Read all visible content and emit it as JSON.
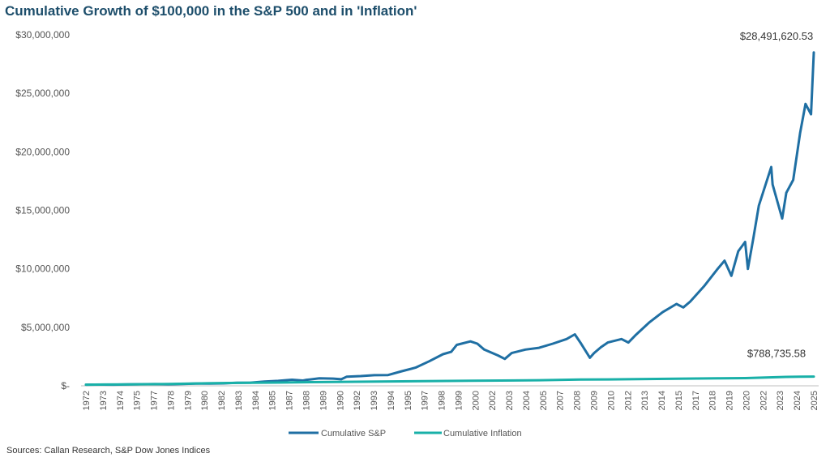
{
  "title": "Cumulative Growth of $100,000 in the S&P 500 and in 'Inflation'",
  "source": "Sources: Callan Research, S&P Dow Jones Indices",
  "colors": {
    "sp": "#1f6fa3",
    "inflation": "#19b0a8",
    "axis": "#bfbfbf",
    "title": "#1d4e6b"
  },
  "chart_data": {
    "type": "line",
    "title": "Cumulative Growth of $100,000 in the S&P 500 and in 'Inflation'",
    "xlabel": "",
    "ylabel": "",
    "ylim": [
      0,
      30000000
    ],
    "grid": false,
    "legend_position": "bottom",
    "y_ticks": [
      {
        "value": 0,
        "label": "$-"
      },
      {
        "value": 5000000,
        "label": "$5,000,000"
      },
      {
        "value": 10000000,
        "label": "$10,000,000"
      },
      {
        "value": 15000000,
        "label": "$15,000,000"
      },
      {
        "value": 20000000,
        "label": "$20,000,000"
      },
      {
        "value": 25000000,
        "label": "$25,000,000"
      },
      {
        "value": 30000000,
        "label": "$30,000,000"
      }
    ],
    "x_labels": [
      "1972",
      "1973",
      "1974",
      "1975",
      "1977",
      "1978",
      "1979",
      "1980",
      "1982",
      "1983",
      "1984",
      "1985",
      "1987",
      "1988",
      "1989",
      "1990",
      "1992",
      "1993",
      "1994",
      "1995",
      "1997",
      "1998",
      "1999",
      "2000",
      "2002",
      "2003",
      "2004",
      "2005",
      "2007",
      "2008",
      "2009",
      "2010",
      "2012",
      "2013",
      "2014",
      "2015",
      "2017",
      "2018",
      "2019",
      "2020",
      "2022",
      "2023",
      "2024",
      "2025"
    ],
    "series": [
      {
        "name": "Cumulative S&P",
        "color": "#1f6fa3",
        "x": [
          1972,
          1973,
          1974,
          1975,
          1976,
          1977,
          1978,
          1979,
          1980,
          1981,
          1982,
          1983,
          1984,
          1985,
          1986,
          1987,
          1987.8,
          1988,
          1989,
          1990,
          1990.6,
          1991,
          1992,
          1993,
          1994,
          1995,
          1996,
          1997,
          1998,
          1998.6,
          1999,
          2000,
          2000.5,
          2001,
          2002,
          2002.5,
          2003,
          2004,
          2005,
          2006,
          2007,
          2007.6,
          2008,
          2008.7,
          2009,
          2009.5,
          2010,
          2011,
          2011.5,
          2012,
          2013,
          2014,
          2015,
          2015.5,
          2016,
          2017,
          2018,
          2018.5,
          2019,
          2019.5,
          2020,
          2020.2,
          2020.6,
          2021,
          2021.9,
          2022,
          2022.7,
          2023,
          2023.5,
          2024,
          2024.4,
          2024.8,
          2025
        ],
        "values": [
          100000,
          105000,
          95000,
          120000,
          140000,
          145000,
          135000,
          160000,
          190000,
          185000,
          210000,
          260000,
          270000,
          360000,
          420000,
          520000,
          450000,
          500000,
          640000,
          620000,
          560000,
          780000,
          830000,
          910000,
          920000,
          1250000,
          1550000,
          2100000,
          2700000,
          2900000,
          3500000,
          3800000,
          3600000,
          3100000,
          2600000,
          2300000,
          2800000,
          3100000,
          3250000,
          3600000,
          4000000,
          4400000,
          3700000,
          2400000,
          2800000,
          3300000,
          3700000,
          4000000,
          3700000,
          4300000,
          5400000,
          6300000,
          7000000,
          6700000,
          7200000,
          8500000,
          10000000,
          10700000,
          9400000,
          11500000,
          12300000,
          10000000,
          12600000,
          15400000,
          18700000,
          17200000,
          14300000,
          16500000,
          17600000,
          21600000,
          24100000,
          23200000,
          28491620.53
        ]
      },
      {
        "name": "Cumulative Inflation",
        "color": "#19b0a8",
        "x": [
          1972,
          1975,
          1978,
          1980,
          1983,
          1986,
          1990,
          1995,
          2000,
          2005,
          2008,
          2010,
          2015,
          2018,
          2020,
          2022,
          2023,
          2024,
          2025
        ],
        "values": [
          100000,
          125000,
          160000,
          200000,
          250000,
          280000,
          330000,
          380000,
          430000,
          480000,
          540000,
          550000,
          600000,
          640000,
          660000,
          730000,
          760000,
          780000,
          788735.58
        ]
      }
    ],
    "annotations": [
      "$28,491,620.53",
      "$788,735.58"
    ]
  }
}
